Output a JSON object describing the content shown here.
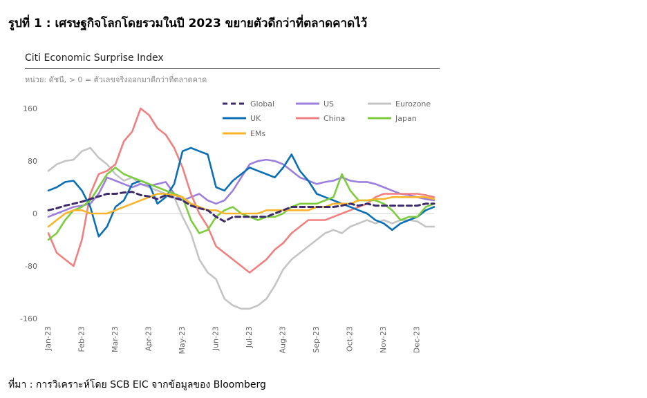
{
  "figure_title": "รูปที่ 1 : เศรษฐกิจโลกโดยรวมในปี 2023 ขยายตัวดีกว่าที่ตลาดคาดไว้",
  "source_note": "ที่มา : การวิเคราะห์โดย SCB EIC จากข้อมูลของ Bloomberg",
  "chart_data": {
    "type": "line",
    "title": "Citi Economic Surprise Index",
    "subtitle": "หน่วย: ดัชนี, > 0 = ตัวเลขจริงออกมาดีกว่าที่ตลาดคาด",
    "ylim": [
      -160,
      160
    ],
    "yticks": [
      -160,
      -80,
      0,
      80,
      160
    ],
    "x": [
      0,
      0.25,
      0.5,
      0.75,
      1,
      1.25,
      1.5,
      1.75,
      2,
      2.25,
      2.5,
      2.75,
      3,
      3.25,
      3.5,
      3.75,
      4,
      4.25,
      4.5,
      4.75,
      5,
      5.25,
      5.5,
      5.75,
      6,
      6.25,
      6.5,
      6.75,
      7,
      7.25,
      7.5,
      7.75,
      8,
      8.25,
      8.5,
      8.75,
      9,
      9.25,
      9.5,
      9.75,
      10,
      10.25,
      10.5,
      10.75,
      11,
      11.25,
      11.5
    ],
    "xticks": [
      {
        "label": "Jan-23",
        "x": 0
      },
      {
        "label": "Feb-23",
        "x": 1
      },
      {
        "label": "Mar-23",
        "x": 2
      },
      {
        "label": "Apr-23",
        "x": 3
      },
      {
        "label": "May-23",
        "x": 4
      },
      {
        "label": "Jun-23",
        "x": 5
      },
      {
        "label": "Jul-23",
        "x": 6
      },
      {
        "label": "Aug-23",
        "x": 7
      },
      {
        "label": "Sep-23",
        "x": 8
      },
      {
        "label": "Oct-23",
        "x": 9
      },
      {
        "label": "Nov-23",
        "x": 10
      },
      {
        "label": "Dec-23",
        "x": 11
      }
    ],
    "series": [
      {
        "name": "Global",
        "color": "#3d2b6b",
        "dashed": true,
        "values": [
          5,
          8,
          12,
          15,
          18,
          22,
          26,
          30,
          30,
          32,
          33,
          28,
          26,
          22,
          28,
          24,
          20,
          12,
          8,
          5,
          -5,
          -12,
          -5,
          -5,
          -5,
          -5,
          -5,
          0,
          5,
          10,
          10,
          10,
          10,
          10,
          10,
          12,
          15,
          12,
          15,
          12,
          12,
          12,
          12,
          12,
          12,
          15,
          15
        ]
      },
      {
        "name": "US",
        "color": "#9b7fdc",
        "dashed": false,
        "values": [
          -5,
          0,
          5,
          10,
          12,
          15,
          30,
          55,
          50,
          45,
          40,
          45,
          42,
          45,
          48,
          30,
          20,
          25,
          30,
          20,
          15,
          20,
          35,
          55,
          75,
          80,
          82,
          80,
          75,
          65,
          55,
          50,
          45,
          48,
          50,
          55,
          50,
          48,
          48,
          45,
          40,
          35,
          30,
          28,
          25,
          22,
          20
        ]
      },
      {
        "name": "Eurozone",
        "color": "#c4c4c4",
        "dashed": false,
        "values": [
          65,
          75,
          80,
          82,
          95,
          100,
          85,
          75,
          60,
          50,
          55,
          45,
          40,
          35,
          30,
          25,
          -5,
          -30,
          -70,
          -90,
          -100,
          -130,
          -140,
          -145,
          -145,
          -140,
          -130,
          -110,
          -85,
          -70,
          -60,
          -50,
          -40,
          -30,
          -25,
          -30,
          -20,
          -15,
          -10,
          -15,
          -10,
          -15,
          -10,
          -10,
          -12,
          -20,
          -20
        ]
      },
      {
        "name": "UK",
        "color": "#0a6fb5",
        "dashed": false,
        "values": [
          35,
          40,
          48,
          50,
          35,
          10,
          -35,
          -20,
          10,
          20,
          45,
          50,
          45,
          15,
          25,
          45,
          95,
          100,
          95,
          90,
          40,
          35,
          50,
          60,
          70,
          65,
          60,
          55,
          70,
          90,
          65,
          50,
          30,
          25,
          20,
          15,
          10,
          5,
          0,
          -10,
          -15,
          -25,
          -15,
          -10,
          -5,
          5,
          10
        ]
      },
      {
        "name": "China",
        "color": "#f08080",
        "dashed": false,
        "values": [
          -30,
          -60,
          -70,
          -80,
          -40,
          30,
          60,
          65,
          75,
          110,
          125,
          160,
          150,
          130,
          120,
          100,
          70,
          30,
          0,
          -20,
          -50,
          -60,
          -70,
          -80,
          -90,
          -80,
          -70,
          -55,
          -45,
          -30,
          -20,
          -10,
          -10,
          -10,
          -5,
          0,
          5,
          10,
          15,
          25,
          30,
          30,
          30,
          30,
          30,
          28,
          25
        ]
      },
      {
        "name": "Japan",
        "color": "#7dcc3d",
        "dashed": false,
        "values": [
          -40,
          -30,
          -10,
          5,
          10,
          20,
          40,
          60,
          70,
          60,
          55,
          50,
          45,
          40,
          35,
          30,
          25,
          -10,
          -30,
          -25,
          -5,
          5,
          10,
          0,
          -5,
          -10,
          -5,
          -5,
          0,
          10,
          15,
          15,
          15,
          20,
          25,
          60,
          35,
          20,
          20,
          20,
          15,
          5,
          -10,
          -5,
          -5,
          10,
          15
        ]
      },
      {
        "name": "EMs",
        "color": "#f8b42b",
        "dashed": false,
        "values": [
          -20,
          -10,
          0,
          5,
          5,
          0,
          0,
          0,
          5,
          10,
          15,
          20,
          25,
          30,
          30,
          28,
          25,
          15,
          10,
          5,
          5,
          0,
          0,
          0,
          0,
          0,
          5,
          5,
          5,
          5,
          5,
          5,
          10,
          10,
          15,
          15,
          15,
          20,
          20,
          22,
          22,
          25,
          25,
          25,
          25,
          25,
          22
        ]
      }
    ],
    "legend_position": "top-right"
  }
}
